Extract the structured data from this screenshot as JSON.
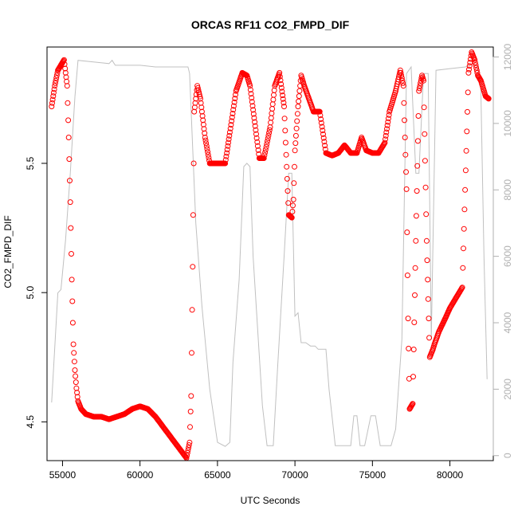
{
  "chart_data": {
    "type": "scatter",
    "title": "ORCAS RF11 CO2_FMPD_DIF",
    "xlabel": "UTC Seconds",
    "ylabel": "CO2_FMPD_DIF",
    "y2label": "",
    "xlim": [
      54000,
      82800
    ],
    "ylim": [
      4.35,
      5.95
    ],
    "y2lim": [
      -150,
      12300
    ],
    "xticks": [
      55000,
      60000,
      65000,
      70000,
      75000,
      80000
    ],
    "xtick_labels": [
      "55000",
      "60000",
      "65000",
      "70000",
      "75000",
      "80000"
    ],
    "yticks": [
      4.5,
      5.0,
      5.5
    ],
    "ytick_labels": [
      "4.5",
      "5.0",
      "5.5"
    ],
    "y2ticks": [
      0,
      2000,
      4000,
      6000,
      8000,
      10000,
      12000
    ],
    "y2tick_labels": [
      "0",
      "2000",
      "4000",
      "6000",
      "8000",
      "10000",
      "12000"
    ],
    "grid": false,
    "series": [
      {
        "marker": "open-circle",
        "axis": "left",
        "color": "#ff0000",
        "x": [
          54300,
          54500,
          54700,
          54900,
          55100,
          55300,
          55400,
          55500,
          55600,
          55700,
          55800,
          55900,
          56000,
          56200,
          56500,
          57000,
          57500,
          58000,
          58500,
          59000,
          59500,
          60000,
          60500,
          61000,
          61500,
          62000,
          62500,
          63000,
          63200,
          63300,
          63400,
          63500,
          63700,
          63900,
          64200,
          64500,
          65000,
          65500,
          65800,
          66200,
          66600,
          66900,
          67100,
          67400,
          67700,
          68000,
          68400,
          68700,
          69000,
          69300,
          69600,
          69800,
          69900,
          70000,
          70200,
          70400,
          70600,
          70900,
          71200,
          71600,
          72000,
          72400,
          72800,
          73200,
          73600,
          74000,
          74300,
          74600,
          75000,
          75400,
          75800,
          76100,
          76500,
          76800,
          77000,
          77200,
          77300,
          77400,
          77600,
          77800,
          78000,
          78200,
          78300,
          78500,
          78700,
          78900,
          79000,
          79300,
          79700,
          80000,
          80400,
          80800,
          81200,
          81400,
          81600,
          81800,
          82000,
          82300,
          82500
        ],
        "y": [
          5.72,
          5.8,
          5.86,
          5.88,
          5.9,
          5.8,
          5.6,
          5.35,
          5.05,
          4.8,
          4.7,
          4.63,
          4.58,
          4.55,
          4.53,
          4.52,
          4.52,
          4.51,
          4.52,
          4.53,
          4.55,
          4.56,
          4.55,
          4.52,
          4.48,
          4.44,
          4.4,
          4.36,
          4.42,
          4.6,
          5.1,
          5.7,
          5.8,
          5.75,
          5.6,
          5.5,
          5.5,
          5.5,
          5.62,
          5.78,
          5.85,
          5.84,
          5.8,
          5.66,
          5.52,
          5.52,
          5.64,
          5.8,
          5.85,
          5.72,
          5.3,
          5.29,
          5.36,
          5.55,
          5.72,
          5.84,
          5.8,
          5.75,
          5.7,
          5.7,
          5.54,
          5.53,
          5.54,
          5.57,
          5.54,
          5.54,
          5.6,
          5.55,
          5.54,
          5.54,
          5.58,
          5.7,
          5.78,
          5.86,
          5.8,
          5.4,
          4.9,
          4.55,
          4.57,
          5.2,
          5.78,
          5.84,
          5.82,
          5.2,
          4.75,
          4.78,
          4.8,
          4.85,
          4.9,
          4.94,
          4.98,
          5.02,
          5.85,
          5.93,
          5.9,
          5.84,
          5.82,
          5.76,
          5.75
        ]
      },
      {
        "marker": "line",
        "axis": "right",
        "color": "#c0c0c0",
        "x": [
          54300,
          54700,
          54900,
          55200,
          55500,
          55800,
          56000,
          57000,
          58000,
          58200,
          58400,
          59000,
          60000,
          61000,
          62000,
          63100,
          63200,
          63600,
          64000,
          64500,
          65000,
          65500,
          65800,
          66000,
          66400,
          66700,
          66900,
          67100,
          67300,
          67500,
          67900,
          68200,
          68600,
          68900,
          69300,
          69600,
          69800,
          70000,
          70200,
          70400,
          70700,
          71000,
          71300,
          71500,
          71700,
          72000,
          72200,
          72600,
          72900,
          73200,
          73600,
          73800,
          74000,
          74200,
          74500,
          74900,
          75200,
          75500,
          75800,
          76200,
          76500,
          76900,
          77200,
          77500,
          77800,
          78000,
          78300,
          78600,
          78800,
          79100,
          80000,
          81000,
          81500,
          81800,
          82000,
          82200,
          82400
        ],
        "y": [
          1600,
          4900,
          5000,
          6500,
          8500,
          10800,
          11900,
          11850,
          11800,
          11900,
          11750,
          11750,
          11750,
          11700,
          11700,
          11700,
          11500,
          7000,
          4500,
          2000,
          400,
          280,
          400,
          2800,
          5300,
          8700,
          8800,
          8700,
          6000,
          4500,
          1500,
          300,
          300,
          2800,
          6000,
          8500,
          8500,
          4200,
          4300,
          3400,
          3400,
          3300,
          3300,
          3200,
          3200,
          3200,
          2000,
          300,
          300,
          300,
          300,
          1200,
          1200,
          300,
          300,
          1200,
          1200,
          300,
          300,
          300,
          800,
          3500,
          11500,
          11700,
          8500,
          8500,
          11500,
          11500,
          3500,
          11600,
          11650,
          11700,
          11800,
          11700,
          11000,
          6000,
          2300
        ]
      }
    ]
  }
}
